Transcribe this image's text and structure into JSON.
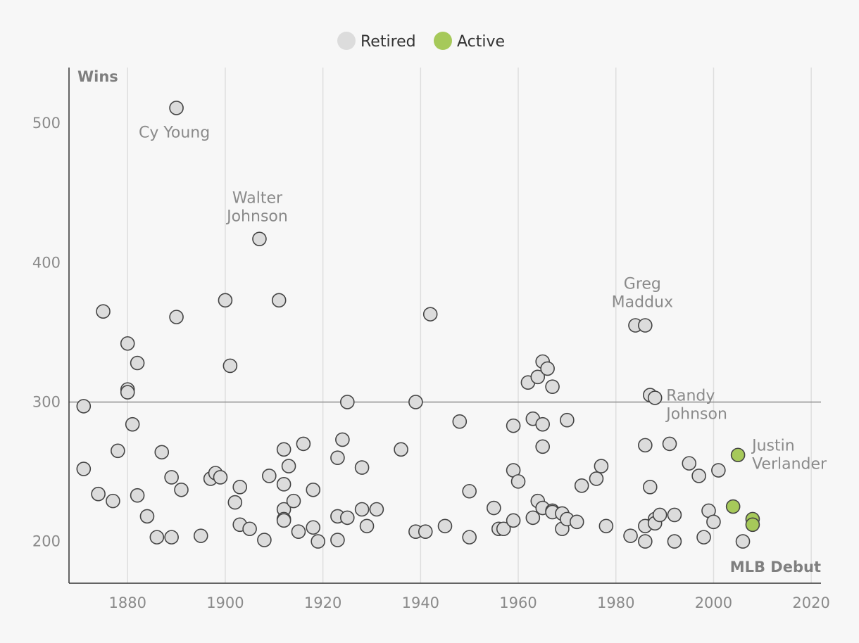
{
  "chart_data": {
    "type": "scatter",
    "xlabel": "MLB Debut",
    "ylabel": "Wins",
    "xlim": [
      1868,
      2022
    ],
    "ylim": [
      170,
      540
    ],
    "x_ticks": [
      1880,
      1900,
      1920,
      1940,
      1960,
      1980,
      2000,
      2020
    ],
    "y_ticks": [
      200,
      300,
      400,
      500
    ],
    "reference_line": 300,
    "grid": "vertical",
    "legend_position": "top-center",
    "legend": [
      {
        "label": "Retired",
        "color": "#dcdcdc"
      },
      {
        "label": "Active",
        "color": "#a6c95a"
      }
    ],
    "series": [
      {
        "name": "Retired",
        "color": "#dcdcdc",
        "points": [
          [
            1871,
            297
          ],
          [
            1871,
            252
          ],
          [
            1874,
            234
          ],
          [
            1875,
            365
          ],
          [
            1877,
            229
          ],
          [
            1878,
            265
          ],
          [
            1880,
            342
          ],
          [
            1880,
            309
          ],
          [
            1880,
            307
          ],
          [
            1881,
            284
          ],
          [
            1882,
            328
          ],
          [
            1882,
            233
          ],
          [
            1884,
            218
          ],
          [
            1886,
            203
          ],
          [
            1887,
            264
          ],
          [
            1889,
            246
          ],
          [
            1889,
            203
          ],
          [
            1890,
            511
          ],
          [
            1890,
            361
          ],
          [
            1891,
            237
          ],
          [
            1895,
            204
          ],
          [
            1897,
            245
          ],
          [
            1898,
            249
          ],
          [
            1899,
            246
          ],
          [
            1900,
            373
          ],
          [
            1901,
            326
          ],
          [
            1902,
            228
          ],
          [
            1903,
            239
          ],
          [
            1903,
            212
          ],
          [
            1905,
            209
          ],
          [
            1907,
            417
          ],
          [
            1908,
            201
          ],
          [
            1909,
            247
          ],
          [
            1911,
            373
          ],
          [
            1912,
            266
          ],
          [
            1912,
            241
          ],
          [
            1912,
            223
          ],
          [
            1912,
            216
          ],
          [
            1912,
            215
          ],
          [
            1913,
            254
          ],
          [
            1914,
            229
          ],
          [
            1915,
            207
          ],
          [
            1916,
            270
          ],
          [
            1918,
            237
          ],
          [
            1918,
            210
          ],
          [
            1919,
            200
          ],
          [
            1923,
            260
          ],
          [
            1923,
            218
          ],
          [
            1923,
            201
          ],
          [
            1924,
            273
          ],
          [
            1925,
            300
          ],
          [
            1925,
            217
          ],
          [
            1928,
            253
          ],
          [
            1928,
            223
          ],
          [
            1929,
            211
          ],
          [
            1931,
            223
          ],
          [
            1936,
            266
          ],
          [
            1939,
            300
          ],
          [
            1939,
            207
          ],
          [
            1941,
            207
          ],
          [
            1942,
            363
          ],
          [
            1945,
            211
          ],
          [
            1948,
            286
          ],
          [
            1950,
            236
          ],
          [
            1950,
            203
          ],
          [
            1955,
            224
          ],
          [
            1956,
            209
          ],
          [
            1957,
            209
          ],
          [
            1959,
            283
          ],
          [
            1959,
            251
          ],
          [
            1959,
            215
          ],
          [
            1960,
            243
          ],
          [
            1962,
            314
          ],
          [
            1963,
            288
          ],
          [
            1963,
            217
          ],
          [
            1964,
            318
          ],
          [
            1964,
            229
          ],
          [
            1965,
            329
          ],
          [
            1965,
            284
          ],
          [
            1965,
            268
          ],
          [
            1965,
            224
          ],
          [
            1966,
            324
          ],
          [
            1967,
            311
          ],
          [
            1967,
            222
          ],
          [
            1967,
            221
          ],
          [
            1969,
            220
          ],
          [
            1969,
            209
          ],
          [
            1970,
            287
          ],
          [
            1970,
            216
          ],
          [
            1972,
            214
          ],
          [
            1973,
            240
          ],
          [
            1976,
            245
          ],
          [
            1977,
            254
          ],
          [
            1978,
            211
          ],
          [
            1983,
            204
          ],
          [
            1984,
            355
          ],
          [
            1986,
            355
          ],
          [
            1986,
            269
          ],
          [
            1986,
            211
          ],
          [
            1986,
            200
          ],
          [
            1987,
            305
          ],
          [
            1987,
            239
          ],
          [
            1988,
            303
          ],
          [
            1988,
            216
          ],
          [
            1988,
            213
          ],
          [
            1989,
            219
          ],
          [
            1991,
            270
          ],
          [
            1992,
            219
          ],
          [
            1992,
            200
          ],
          [
            1995,
            256
          ],
          [
            1997,
            247
          ],
          [
            1998,
            203
          ],
          [
            1999,
            222
          ],
          [
            2000,
            214
          ],
          [
            2001,
            251
          ],
          [
            2006,
            200
          ]
        ]
      },
      {
        "name": "Active",
        "color": "#a6c95a",
        "points": [
          [
            2004,
            225
          ],
          [
            2005,
            262
          ],
          [
            2008,
            216
          ],
          [
            2008,
            212
          ]
        ]
      }
    ],
    "annotations": [
      {
        "lines": [
          "Cy Young"
        ],
        "x": 1890,
        "y": 511
      },
      {
        "lines": [
          "Walter",
          "Johnson"
        ],
        "x": 1907,
        "y": 417
      },
      {
        "lines": [
          "Greg",
          "Maddux"
        ],
        "x": 1986,
        "y": 355
      },
      {
        "lines": [
          "Randy",
          "Johnson"
        ],
        "x": 1988,
        "y": 303
      },
      {
        "lines": [
          "Justin",
          "Verlander"
        ],
        "x": 2005,
        "y": 262
      }
    ]
  }
}
